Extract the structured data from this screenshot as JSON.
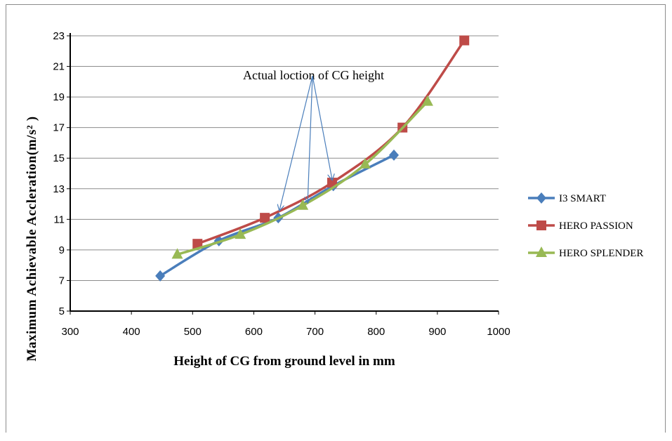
{
  "chart_data": {
    "type": "line",
    "xlabel": "Height of CG from ground level in mm",
    "ylabel": "Maximum Achievable Accleration(m/s² )",
    "xlim": [
      300,
      1000
    ],
    "ylim": [
      5,
      23
    ],
    "xticks": [
      300,
      400,
      500,
      600,
      700,
      800,
      900,
      1000
    ],
    "yticks": [
      5,
      7,
      9,
      11,
      13,
      15,
      17,
      19,
      21,
      23
    ],
    "grid": "horizontal",
    "legend_position": "right",
    "annotation": {
      "text": "Actual loction of CG height",
      "arrow_targets": [
        [
          642,
          11.6
        ],
        [
          688,
          12.1
        ],
        [
          728,
          13.6
        ]
      ]
    },
    "series": [
      {
        "name": "I3 SMART",
        "color": "#4a7ebb",
        "marker": "diamond",
        "x": [
          447,
          543,
          640,
          730,
          829
        ],
        "y": [
          7.3,
          9.6,
          11.1,
          13.2,
          15.2
        ]
      },
      {
        "name": "HERO PASSION",
        "color": "#be4b48",
        "marker": "square",
        "x": [
          508,
          618,
          728,
          843,
          944
        ],
        "y": [
          9.4,
          11.1,
          13.4,
          17.0,
          22.7
        ]
      },
      {
        "name": "HERO SPLENDER",
        "color": "#98b954",
        "marker": "triangle",
        "x": [
          475,
          578,
          680,
          782,
          884
        ],
        "y": [
          8.7,
          10.0,
          11.9,
          14.6,
          18.7
        ]
      }
    ]
  }
}
